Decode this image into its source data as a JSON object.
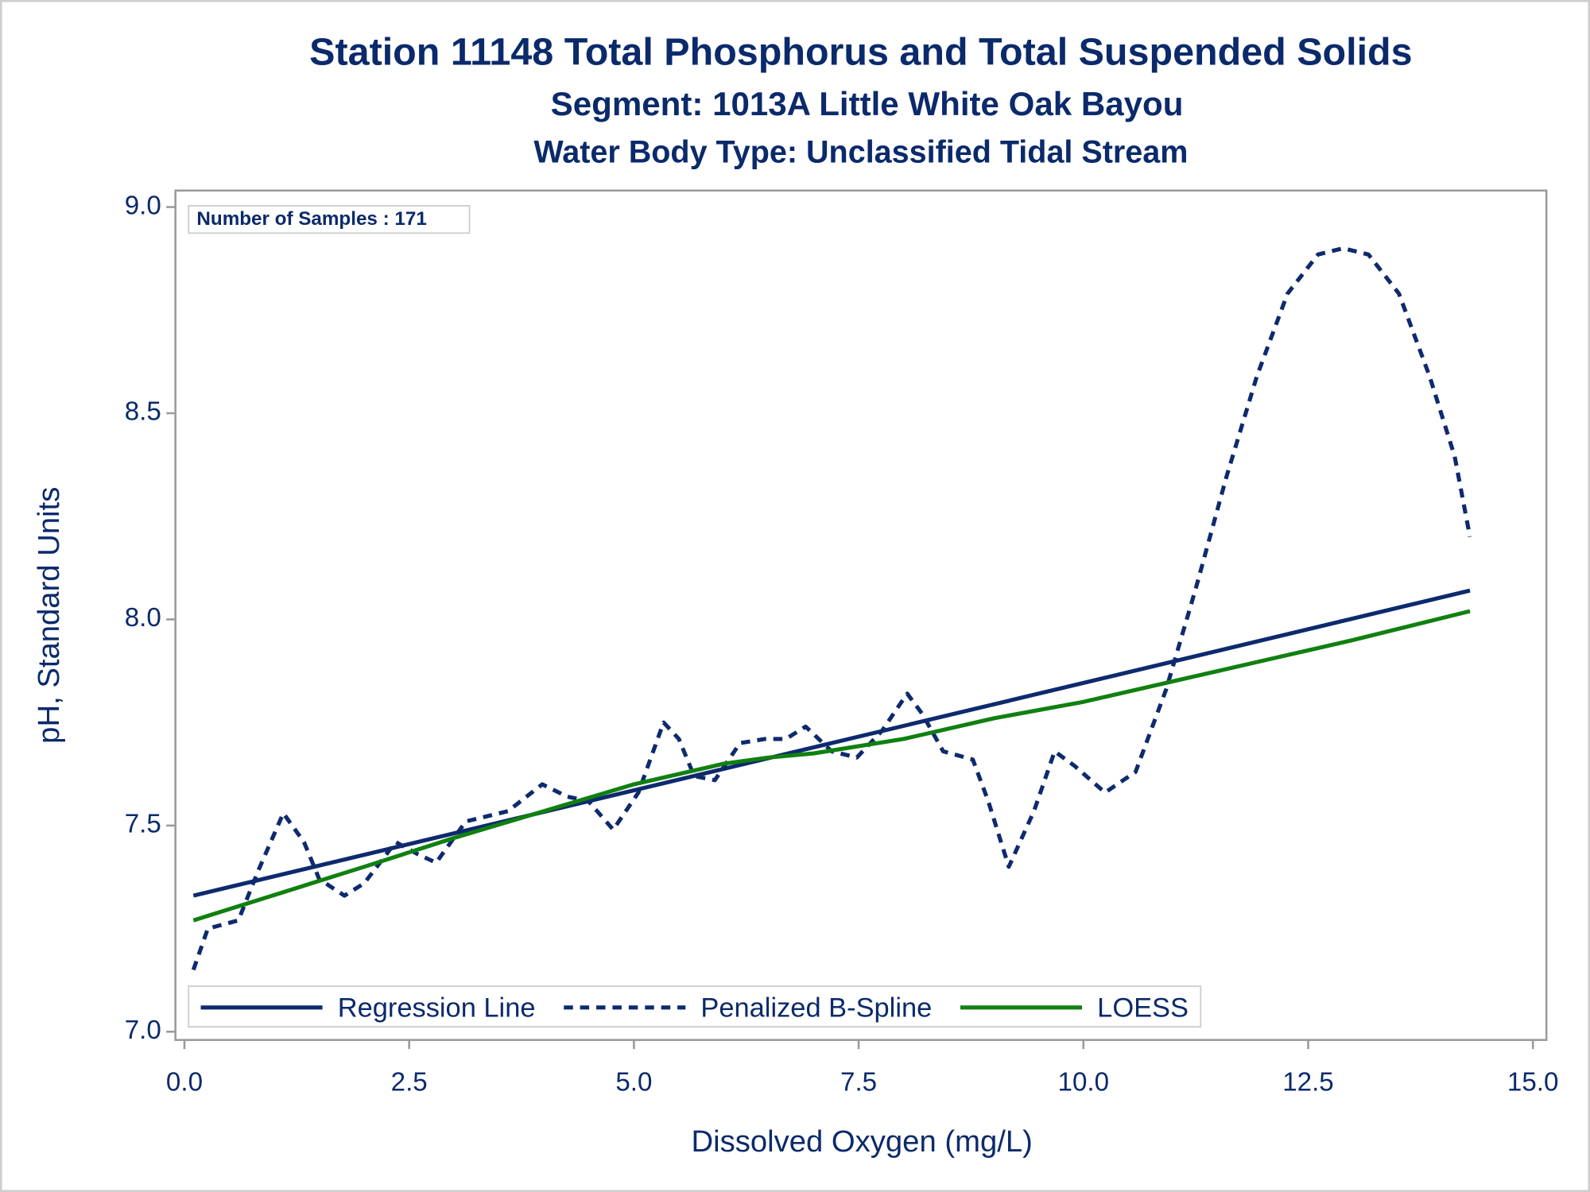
{
  "chart_data": {
    "type": "line",
    "title": "Station 11148  Total Phosphorus and Total Suspended Solids",
    "subtitle": "Segment: 1013A  Little White Oak Bayou",
    "subtitle2": "Water Body Type: Unclassified Tidal Stream",
    "x_label": "Dissolved Oxygen (mg/L)",
    "y_label": "pH, Standard Units",
    "annotation": "Number of Samples : 171",
    "xlim": [
      -0.1,
      15.15
    ],
    "ylim": [
      6.98,
      9.04
    ],
    "xticks": [
      {
        "value": 0,
        "label": "0.0"
      },
      2.5,
      {
        "value": 5,
        "label": "5.0"
      },
      7.5,
      {
        "value": 10,
        "label": "10.0"
      },
      12.5,
      {
        "value": 15,
        "label": "15.0"
      }
    ],
    "yticks": [
      {
        "value": 7,
        "label": "7.0"
      },
      7.5,
      {
        "value": 8,
        "label": "8.0"
      },
      8.5,
      {
        "value": 9,
        "label": "9.0"
      }
    ],
    "legend": "bottom-left",
    "series": [
      {
        "name": "Regression Line",
        "color": "#0e2a6e",
        "style": "solid",
        "x": [
          0.1,
          14.3
        ],
        "values": [
          7.33,
          8.07
        ]
      },
      {
        "name": "Penalized B-Spline",
        "color": "#0e2a6e",
        "style": "dashed",
        "x": [
          0.1,
          0.26,
          0.6,
          0.82,
          1.1,
          1.33,
          1.5,
          1.78,
          2.0,
          2.35,
          2.6,
          2.8,
          3.13,
          3.6,
          3.98,
          4.26,
          4.49,
          4.77,
          5.05,
          5.33,
          5.5,
          5.67,
          5.9,
          6.18,
          6.46,
          6.69,
          6.91,
          7.2,
          7.48,
          7.76,
          8.04,
          8.21,
          8.44,
          8.77,
          8.94,
          9.17,
          9.45,
          9.68,
          9.9,
          10.24,
          10.58,
          10.92,
          11.25,
          11.59,
          11.93,
          12.27,
          12.61,
          12.89,
          13.17,
          13.51,
          13.85,
          14.13,
          14.3
        ],
        "values": [
          7.15,
          7.25,
          7.27,
          7.39,
          7.53,
          7.46,
          7.37,
          7.33,
          7.36,
          7.46,
          7.43,
          7.41,
          7.51,
          7.535,
          7.6,
          7.57,
          7.56,
          7.49,
          7.58,
          7.75,
          7.71,
          7.62,
          7.61,
          7.7,
          7.71,
          7.71,
          7.74,
          7.68,
          7.665,
          7.73,
          7.82,
          7.77,
          7.68,
          7.66,
          7.56,
          7.4,
          7.535,
          7.68,
          7.645,
          7.58,
          7.63,
          7.83,
          8.075,
          8.345,
          8.59,
          8.79,
          8.885,
          8.9,
          8.885,
          8.79,
          8.59,
          8.395,
          8.2
        ]
      },
      {
        "name": "LOESS",
        "color": "#108010",
        "style": "solid",
        "x": [
          0.1,
          2,
          3,
          4,
          5,
          6,
          6.5,
          7,
          8,
          9,
          10,
          11,
          12,
          13,
          14.3
        ],
        "values": [
          7.27,
          7.4,
          7.47,
          7.535,
          7.6,
          7.65,
          7.665,
          7.675,
          7.71,
          7.76,
          7.8,
          7.85,
          7.9,
          7.95,
          8.02
        ]
      }
    ]
  }
}
